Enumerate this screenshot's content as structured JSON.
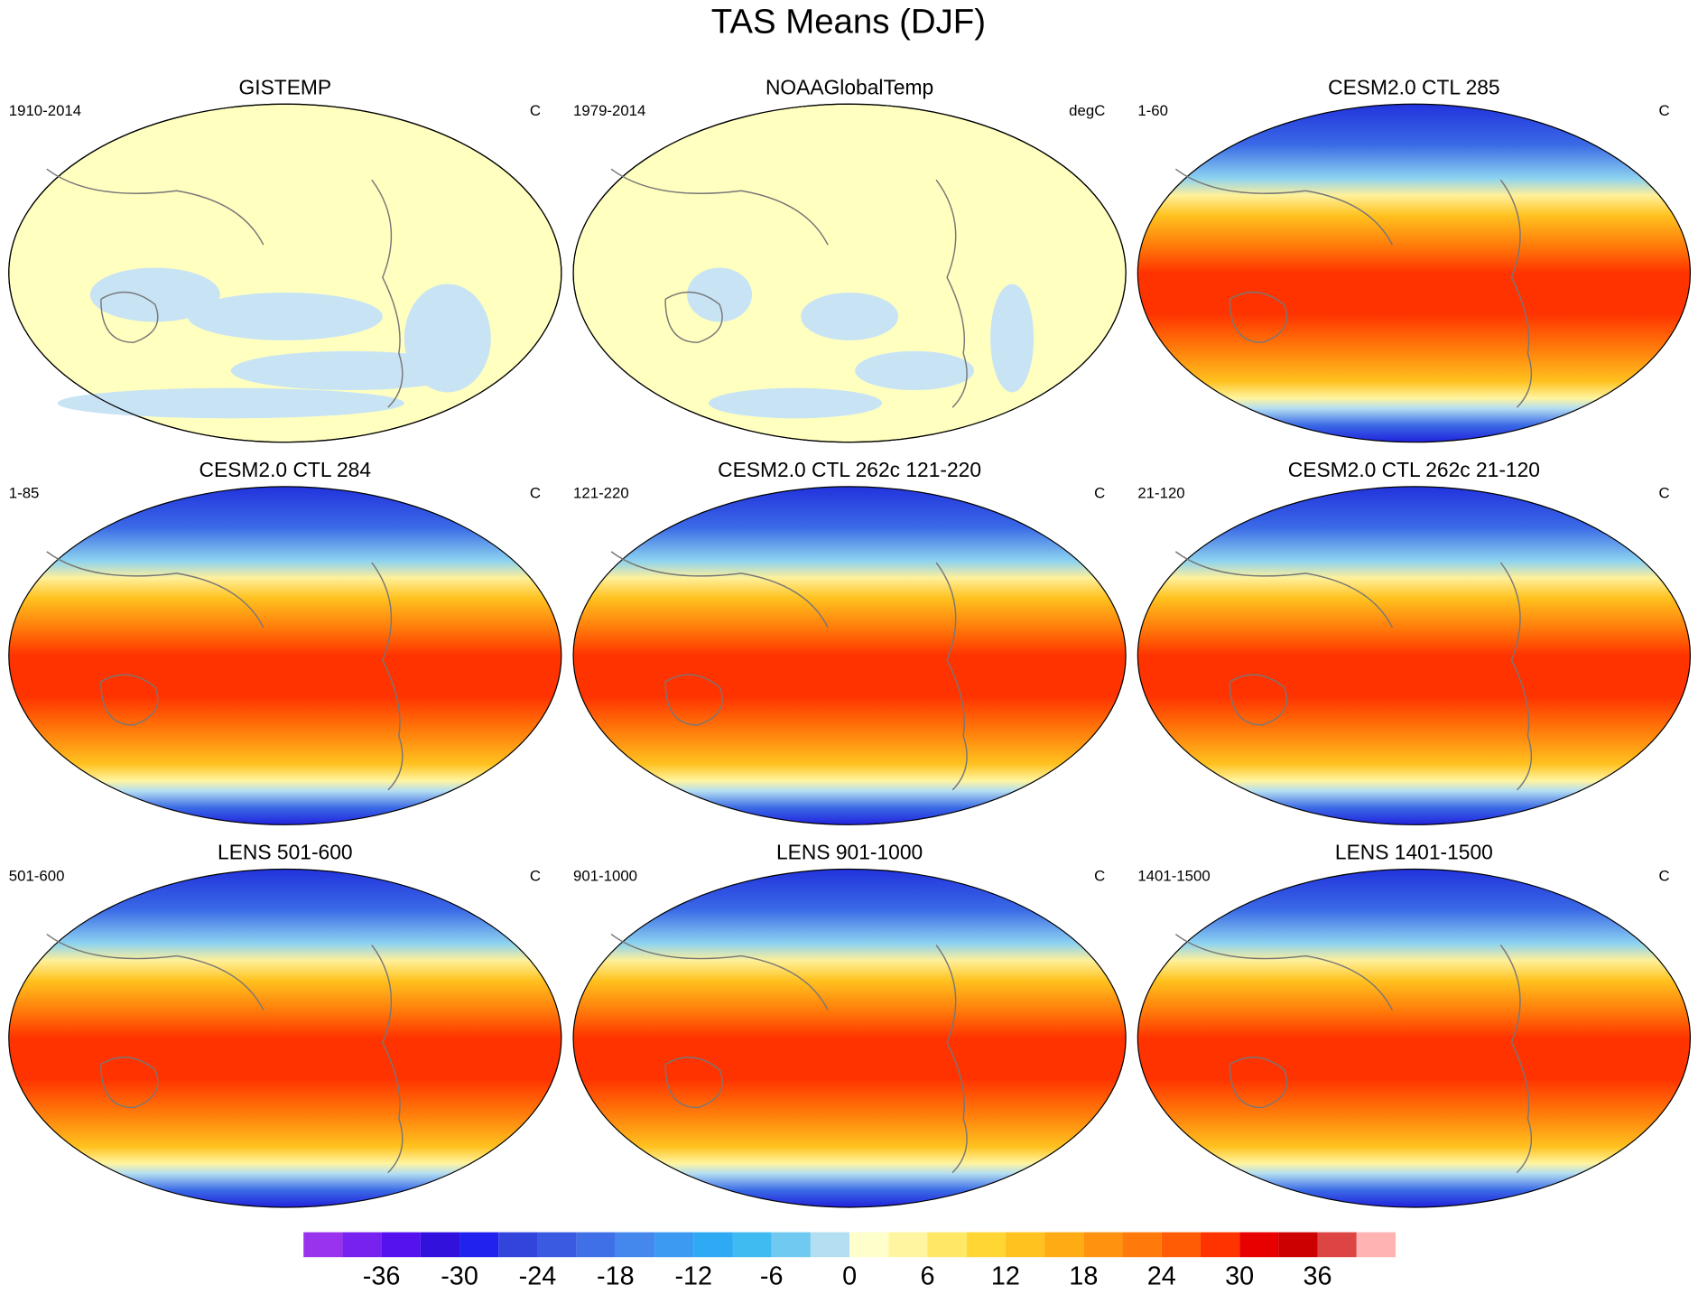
{
  "title": "TAS Means (DJF)",
  "panels": [
    {
      "title": "GISTEMP",
      "left": "1910-2014",
      "right": "C"
    },
    {
      "title": "NOAAGlobalTemp",
      "left": "1979-2014",
      "right": "degC"
    },
    {
      "title": "CESM2.0 CTL 285",
      "left": "1-60",
      "right": "C"
    },
    {
      "title": "CESM2.0 CTL 284",
      "left": "1-85",
      "right": "C"
    },
    {
      "title": "CESM2.0 CTL 262c 121-220",
      "left": "121-220",
      "right": "C"
    },
    {
      "title": "CESM2.0 CTL 262c 21-120",
      "left": "21-120",
      "right": "C"
    },
    {
      "title": "LENS 501-600",
      "left": "501-600",
      "right": "C"
    },
    {
      "title": "LENS 901-1000",
      "left": "901-1000",
      "right": "C"
    },
    {
      "title": "LENS 1401-1500",
      "left": "1401-1500",
      "right": "C"
    }
  ],
  "colorbar": {
    "colors": [
      "#9933ee",
      "#7722ee",
      "#5511ee",
      "#3311dd",
      "#2222ee",
      "#3344dd",
      "#3a5ae2",
      "#4070e8",
      "#4488ee",
      "#3c9af2",
      "#2eaaf5",
      "#40bbf2",
      "#70c9f0",
      "#b4def2",
      "#ffffcc",
      "#fff5a0",
      "#ffe866",
      "#ffd633",
      "#ffc21f",
      "#ffab14",
      "#ff920f",
      "#ff7a0a",
      "#ff5c05",
      "#ff3300",
      "#e80000",
      "#cc0000",
      "#dd4444",
      "#ffb3b3"
    ],
    "lim": [
      -42,
      42
    ],
    "ticks": [
      -36,
      -30,
      -24,
      -18,
      -12,
      -6,
      0,
      6,
      12,
      18,
      24,
      30,
      36
    ]
  }
}
